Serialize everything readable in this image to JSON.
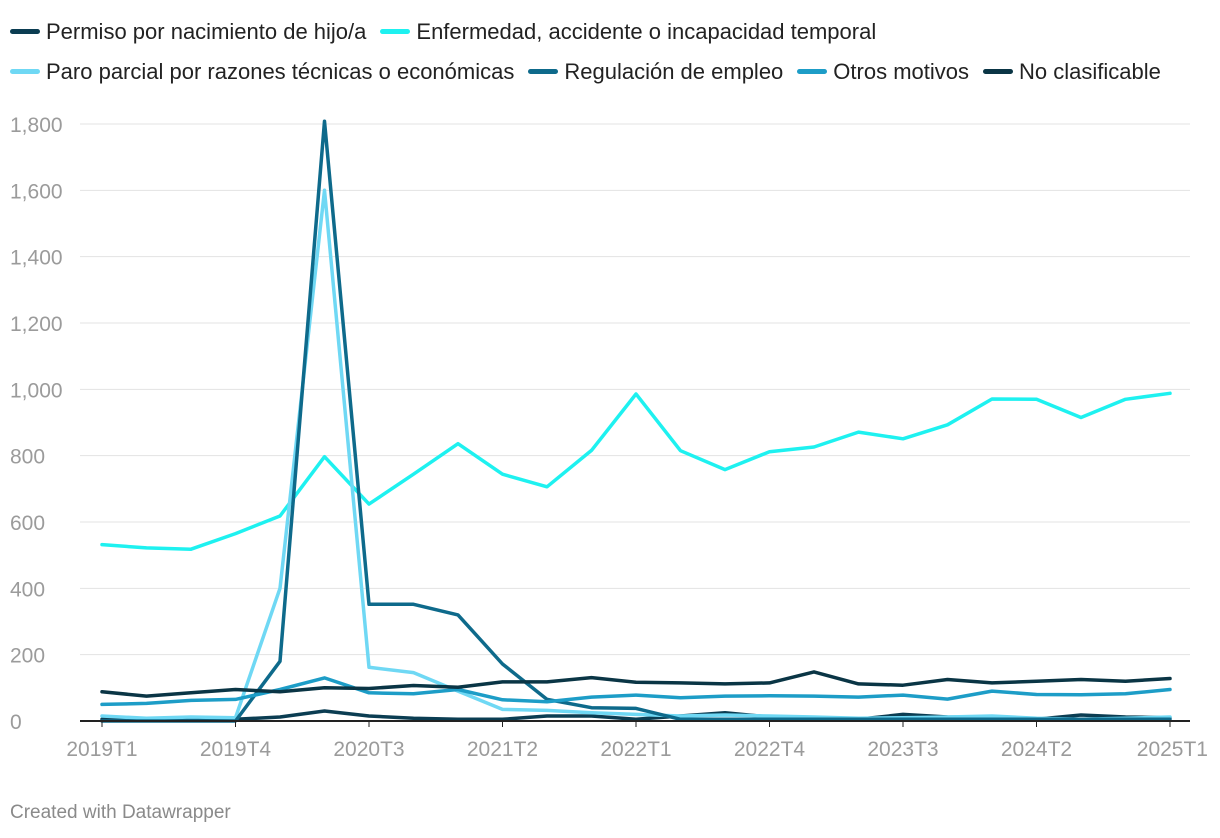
{
  "chart_data": {
    "type": "line",
    "title": "",
    "xlabel": "",
    "ylabel": "",
    "ylim": [
      0,
      1800
    ],
    "yticks": [
      "0",
      "200",
      "400",
      "600",
      "800",
      "1,000",
      "1,200",
      "1,400",
      "1,600",
      "1,800"
    ],
    "ytick_values": [
      0,
      200,
      400,
      600,
      800,
      1000,
      1200,
      1400,
      1600,
      1800
    ],
    "x": [
      "2019T1",
      "2019T2",
      "2019T3",
      "2019T4",
      "2020T1",
      "2020T2",
      "2020T3",
      "2020T4",
      "2021T1",
      "2021T2",
      "2021T3",
      "2021T4",
      "2022T1",
      "2022T2",
      "2022T3",
      "2022T4",
      "2023T1",
      "2023T2",
      "2023T3",
      "2023T4",
      "2024T1",
      "2024T2",
      "2024T3",
      "2024T4",
      "2025T1"
    ],
    "xticks": [
      "2019T1",
      "2019T4",
      "2020T3",
      "2021T2",
      "2022T1",
      "2022T4",
      "2023T3",
      "2024T2",
      "2025T1"
    ],
    "grid": true,
    "legend_position": "top",
    "series": [
      {
        "name": "Permiso por nacimiento de hijo/a",
        "color": "#0b3d52",
        "values": [
          5,
          5,
          5,
          5,
          12,
          30,
          15,
          8,
          5,
          5,
          15,
          15,
          5,
          15,
          25,
          12,
          8,
          5,
          20,
          12,
          10,
          5,
          18,
          12,
          10
        ]
      },
      {
        "name": "Enfermedad, accidente o incapacidad temporal",
        "color": "#1ef1f0",
        "values": [
          532,
          522,
          518,
          565,
          618,
          797,
          654,
          744,
          836,
          744,
          706,
          816,
          986,
          815,
          758,
          812,
          826,
          871,
          851,
          893,
          971,
          970,
          915,
          970,
          988
        ]
      },
      {
        "name": "Paro parcial por razones técnicas o económicas",
        "color": "#6fd8f4",
        "values": [
          15,
          8,
          12,
          10,
          400,
          1600,
          162,
          146,
          90,
          35,
          32,
          25,
          20,
          15,
          18,
          15,
          12,
          8,
          10,
          12,
          15,
          8,
          5,
          8,
          12
        ]
      },
      {
        "name": "Regulación de empleo",
        "color": "#0e6a8b",
        "values": [
          0,
          0,
          0,
          0,
          180,
          1808,
          352,
          352,
          320,
          172,
          65,
          40,
          38,
          5,
          5,
          5,
          5,
          5,
          5,
          5,
          5,
          5,
          5,
          5,
          5
        ]
      },
      {
        "name": "Otros motivos",
        "color": "#1d9dc7",
        "values": [
          50,
          53,
          62,
          65,
          95,
          130,
          85,
          82,
          95,
          64,
          58,
          72,
          78,
          70,
          75,
          76,
          75,
          72,
          78,
          66,
          90,
          80,
          79,
          82,
          95
        ]
      },
      {
        "name": "No clasificable",
        "color": "#0a3545",
        "values": [
          88,
          75,
          85,
          95,
          88,
          100,
          98,
          107,
          102,
          118,
          118,
          131,
          117,
          115,
          112,
          115,
          148,
          112,
          108,
          125,
          115,
          120,
          125,
          120,
          128
        ]
      }
    ]
  },
  "footer": "Created with Datawrapper"
}
